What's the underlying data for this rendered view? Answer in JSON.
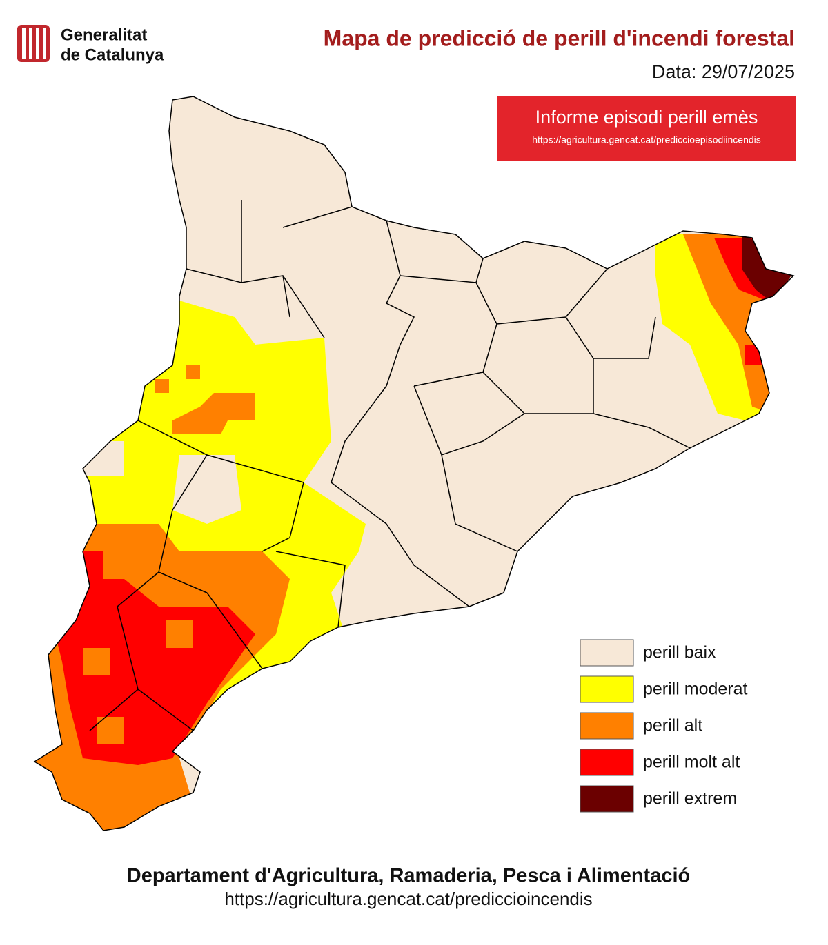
{
  "header": {
    "logo_lines": [
      "Generalitat",
      "de Catalunya"
    ],
    "title": "Mapa de predicció de perill d'incendi forestal",
    "date": "Data: 29/07/2025"
  },
  "banner": {
    "text": "Informe episodi perill emès",
    "url": "https://agricultura.gencat.cat/prediccioepisodiincendis"
  },
  "legend": [
    {
      "label": "perill baix",
      "color": "#f7e8d7"
    },
    {
      "label": "perill moderat",
      "color": "#ffff00"
    },
    {
      "label": "perill alt",
      "color": "#ff8000"
    },
    {
      "label": "perill molt alt",
      "color": "#ff0000"
    },
    {
      "label": "perill extrem",
      "color": "#6b0000"
    }
  ],
  "footer": {
    "department": "Departament d'Agricultura, Ramaderia, Pesca i Alimentació",
    "url": "https://agricultura.gencat.cat/prediccioincendis"
  }
}
